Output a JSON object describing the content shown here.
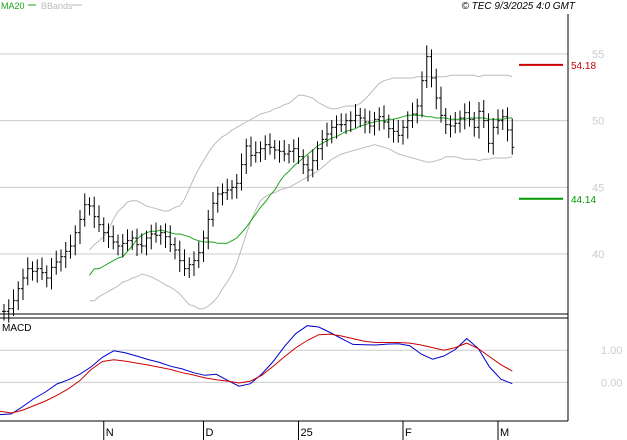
{
  "header": {
    "legend_ma": "MA20",
    "legend_bb": "BBands",
    "copyright": "© TEC 9/3/2025 4:0 GMT"
  },
  "chart_data": [
    {
      "type": "ohlc",
      "title": "",
      "legend": [
        {
          "name": "MA20",
          "color": "#1aa51a"
        },
        {
          "name": "BBands",
          "color": "#bbbbbb"
        }
      ],
      "legend_position": "top-left",
      "grid": true,
      "yticks": [
        {
          "value": 40,
          "label": "40"
        },
        {
          "value": 45,
          "label": "45"
        },
        {
          "value": 50,
          "label": "50"
        },
        {
          "value": 55,
          "label": "55"
        }
      ],
      "ylim": [
        35.5,
        58.0
      ],
      "xticks": [
        {
          "index": 21,
          "label": "N"
        },
        {
          "index": 42,
          "label": "D"
        },
        {
          "index": 62,
          "label": "25"
        },
        {
          "index": 84,
          "label": "F"
        },
        {
          "index": 104,
          "label": "M"
        }
      ],
      "levels": [
        {
          "value": 54.18,
          "label": "54.18",
          "color": "#cc0000"
        },
        {
          "value": 44.14,
          "label": "44.14",
          "color": "#009900"
        }
      ],
      "close": [
        35.7,
        35.9,
        36.5,
        37.4,
        38.2,
        38.9,
        38.7,
        38.9,
        38.6,
        38.2,
        39.0,
        39.4,
        39.8,
        40.2,
        40.6,
        41.6,
        42.6,
        43.7,
        43.6,
        42.8,
        42.2,
        41.6,
        41.3,
        40.9,
        40.6,
        40.8,
        41.0,
        41.2,
        40.7,
        40.6,
        41.2,
        41.5,
        41.4,
        41.6,
        41.3,
        40.7,
        40.3,
        39.5,
        38.9,
        39.2,
        39.5,
        40.1,
        41.2,
        42.6,
        43.8,
        44.5,
        44.6,
        44.8,
        45.0,
        45.3,
        46.7,
        48.1,
        47.4,
        47.6,
        47.9,
        48.2,
        48.0,
        47.8,
        47.7,
        47.5,
        47.7,
        47.9,
        47.3,
        46.7,
        46.3,
        47.0,
        47.9,
        48.6,
        49.0,
        49.5,
        49.7,
        49.7,
        50.0,
        50.0,
        50.4,
        50.2,
        49.9,
        49.6,
        50.1,
        50.3,
        49.9,
        49.4,
        49.2,
        48.9,
        49.5,
        50.0,
        50.5,
        51.1,
        53.0,
        54.8,
        53.2,
        51.7,
        50.4,
        49.7,
        49.6,
        49.8,
        50.2,
        50.6,
        50.1,
        49.5,
        50.7,
        50.0,
        48.3,
        49.5,
        50.0,
        50.3,
        49.3,
        48.0
      ],
      "ma20": [
        38.4,
        38.9,
        38.9,
        39.1,
        39.3,
        39.5,
        39.7,
        39.8,
        40.2,
        40.6,
        41.1,
        41.4,
        41.6,
        41.7,
        41.7,
        41.8,
        41.7,
        41.6,
        41.5,
        41.5,
        41.4,
        41.3,
        41.1,
        41.0,
        40.9,
        40.9,
        40.9,
        40.8,
        40.8,
        40.8,
        41.0,
        41.2,
        41.6,
        42.0,
        42.5,
        43.0,
        43.5,
        43.9,
        44.4,
        44.8,
        45.4,
        45.9,
        46.2,
        46.6,
        46.9,
        47.2,
        47.5,
        47.8,
        48.1,
        48.3,
        48.5,
        48.7,
        48.8,
        49.0,
        49.2,
        49.3,
        49.4,
        49.6,
        49.7,
        49.8,
        49.9,
        50.0,
        50.0,
        50.1,
        50.1,
        50.2,
        50.3,
        50.4,
        50.4,
        50.4,
        50.4,
        50.3,
        50.3,
        50.2,
        50.2,
        50.2,
        50.1,
        50.1,
        50.1,
        50.1,
        50.2,
        50.2,
        50.2,
        50.2,
        50.1,
        50.1,
        50.1,
        50.1,
        50.2,
        50.2
      ],
      "bb_upper": [
        40.3,
        40.7,
        41.0,
        41.3,
        41.8,
        42.6,
        43.2,
        43.5,
        43.9,
        44.0,
        44.0,
        43.8,
        43.6,
        43.5,
        43.4,
        43.3,
        43.2,
        43.3,
        43.5,
        43.6,
        44.1,
        44.9,
        45.7,
        46.4,
        47.0,
        47.6,
        48.1,
        48.5,
        48.8,
        49.0,
        49.3,
        49.5,
        49.7,
        49.9,
        50.1,
        50.3,
        50.5,
        50.6,
        50.7,
        50.9,
        51.0,
        51.2,
        51.3,
        51.6,
        51.9,
        51.9,
        51.8,
        51.7,
        51.4,
        51.2,
        51.0,
        50.9,
        50.9,
        51.0,
        51.1,
        51.1,
        51.1,
        51.3,
        51.6,
        52.0,
        52.4,
        52.8,
        53.0,
        53.1,
        53.2,
        53.2,
        53.2,
        53.2,
        53.2,
        53.3,
        53.3,
        53.3,
        53.3,
        53.3,
        53.3,
        53.3,
        53.4,
        53.4,
        53.4,
        53.4,
        53.4,
        53.4,
        53.3,
        53.4,
        53.4,
        53.4,
        53.4,
        53.4,
        53.4,
        53.3
      ],
      "bb_lower": [
        36.5,
        36.5,
        36.8,
        37.0,
        37.2,
        37.4,
        37.6,
        37.9,
        38.0,
        38.2,
        38.3,
        38.5,
        38.4,
        38.3,
        38.1,
        37.9,
        37.7,
        37.5,
        37.3,
        37.0,
        36.6,
        36.2,
        36.1,
        35.9,
        35.9,
        36.1,
        36.4,
        36.8,
        37.4,
        37.9,
        38.5,
        39.3,
        40.4,
        41.5,
        42.5,
        43.3,
        44.0,
        44.3,
        44.5,
        44.6,
        44.8,
        44.9,
        45.0,
        45.2,
        45.4,
        45.6,
        45.8,
        46.0,
        46.2,
        46.5,
        46.8,
        47.1,
        47.3,
        47.5,
        47.6,
        47.7,
        47.8,
        47.9,
        48.0,
        48.1,
        48.2,
        48.1,
        48.0,
        47.9,
        47.7,
        47.5,
        47.4,
        47.3,
        47.2,
        47.1,
        47.0,
        46.9,
        46.9,
        47.0,
        47.1,
        47.3,
        47.3,
        47.3,
        47.2,
        47.1,
        47.1,
        47.1,
        47.0,
        47.1,
        47.1,
        47.2,
        47.2,
        47.2,
        47.2,
        47.3
      ]
    },
    {
      "type": "line",
      "title": "MACD",
      "yticks": [
        {
          "value": 1.0,
          "label": "1.00"
        },
        {
          "value": 0.0,
          "label": "0.00"
        }
      ],
      "ylim": [
        -1.2,
        2.0
      ],
      "grid": true,
      "series": [
        {
          "name": "",
          "color": "#0000cc",
          "values": [
            -1.0,
            -0.98,
            -0.75,
            -0.5,
            -0.3,
            -0.05,
            0.08,
            0.25,
            0.48,
            0.78,
            0.98,
            0.92,
            0.82,
            0.71,
            0.62,
            0.5,
            0.42,
            0.3,
            0.22,
            0.25,
            0.06,
            -0.12,
            -0.04,
            0.26,
            0.65,
            1.12,
            1.52,
            1.76,
            1.72,
            1.55,
            1.36,
            1.18,
            1.17,
            1.16,
            1.19,
            1.2,
            1.14,
            0.88,
            0.72,
            0.82,
            1.02,
            1.36,
            1.06,
            0.48,
            0.1,
            -0.04
          ]
        },
        {
          "name": "",
          "color": "#cc0000",
          "values": [
            -0.9,
            -0.95,
            -0.86,
            -0.72,
            -0.58,
            -0.4,
            -0.2,
            0.05,
            0.4,
            0.65,
            0.7,
            0.66,
            0.6,
            0.54,
            0.47,
            0.4,
            0.3,
            0.23,
            0.14,
            0.08,
            0.04,
            -0.02,
            0.04,
            0.22,
            0.5,
            0.8,
            1.08,
            1.3,
            1.48,
            1.5,
            1.44,
            1.36,
            1.28,
            1.24,
            1.24,
            1.24,
            1.22,
            1.16,
            1.08,
            1.0,
            1.08,
            1.22,
            1.05,
            0.8,
            0.55,
            0.35
          ]
        }
      ]
    }
  ]
}
